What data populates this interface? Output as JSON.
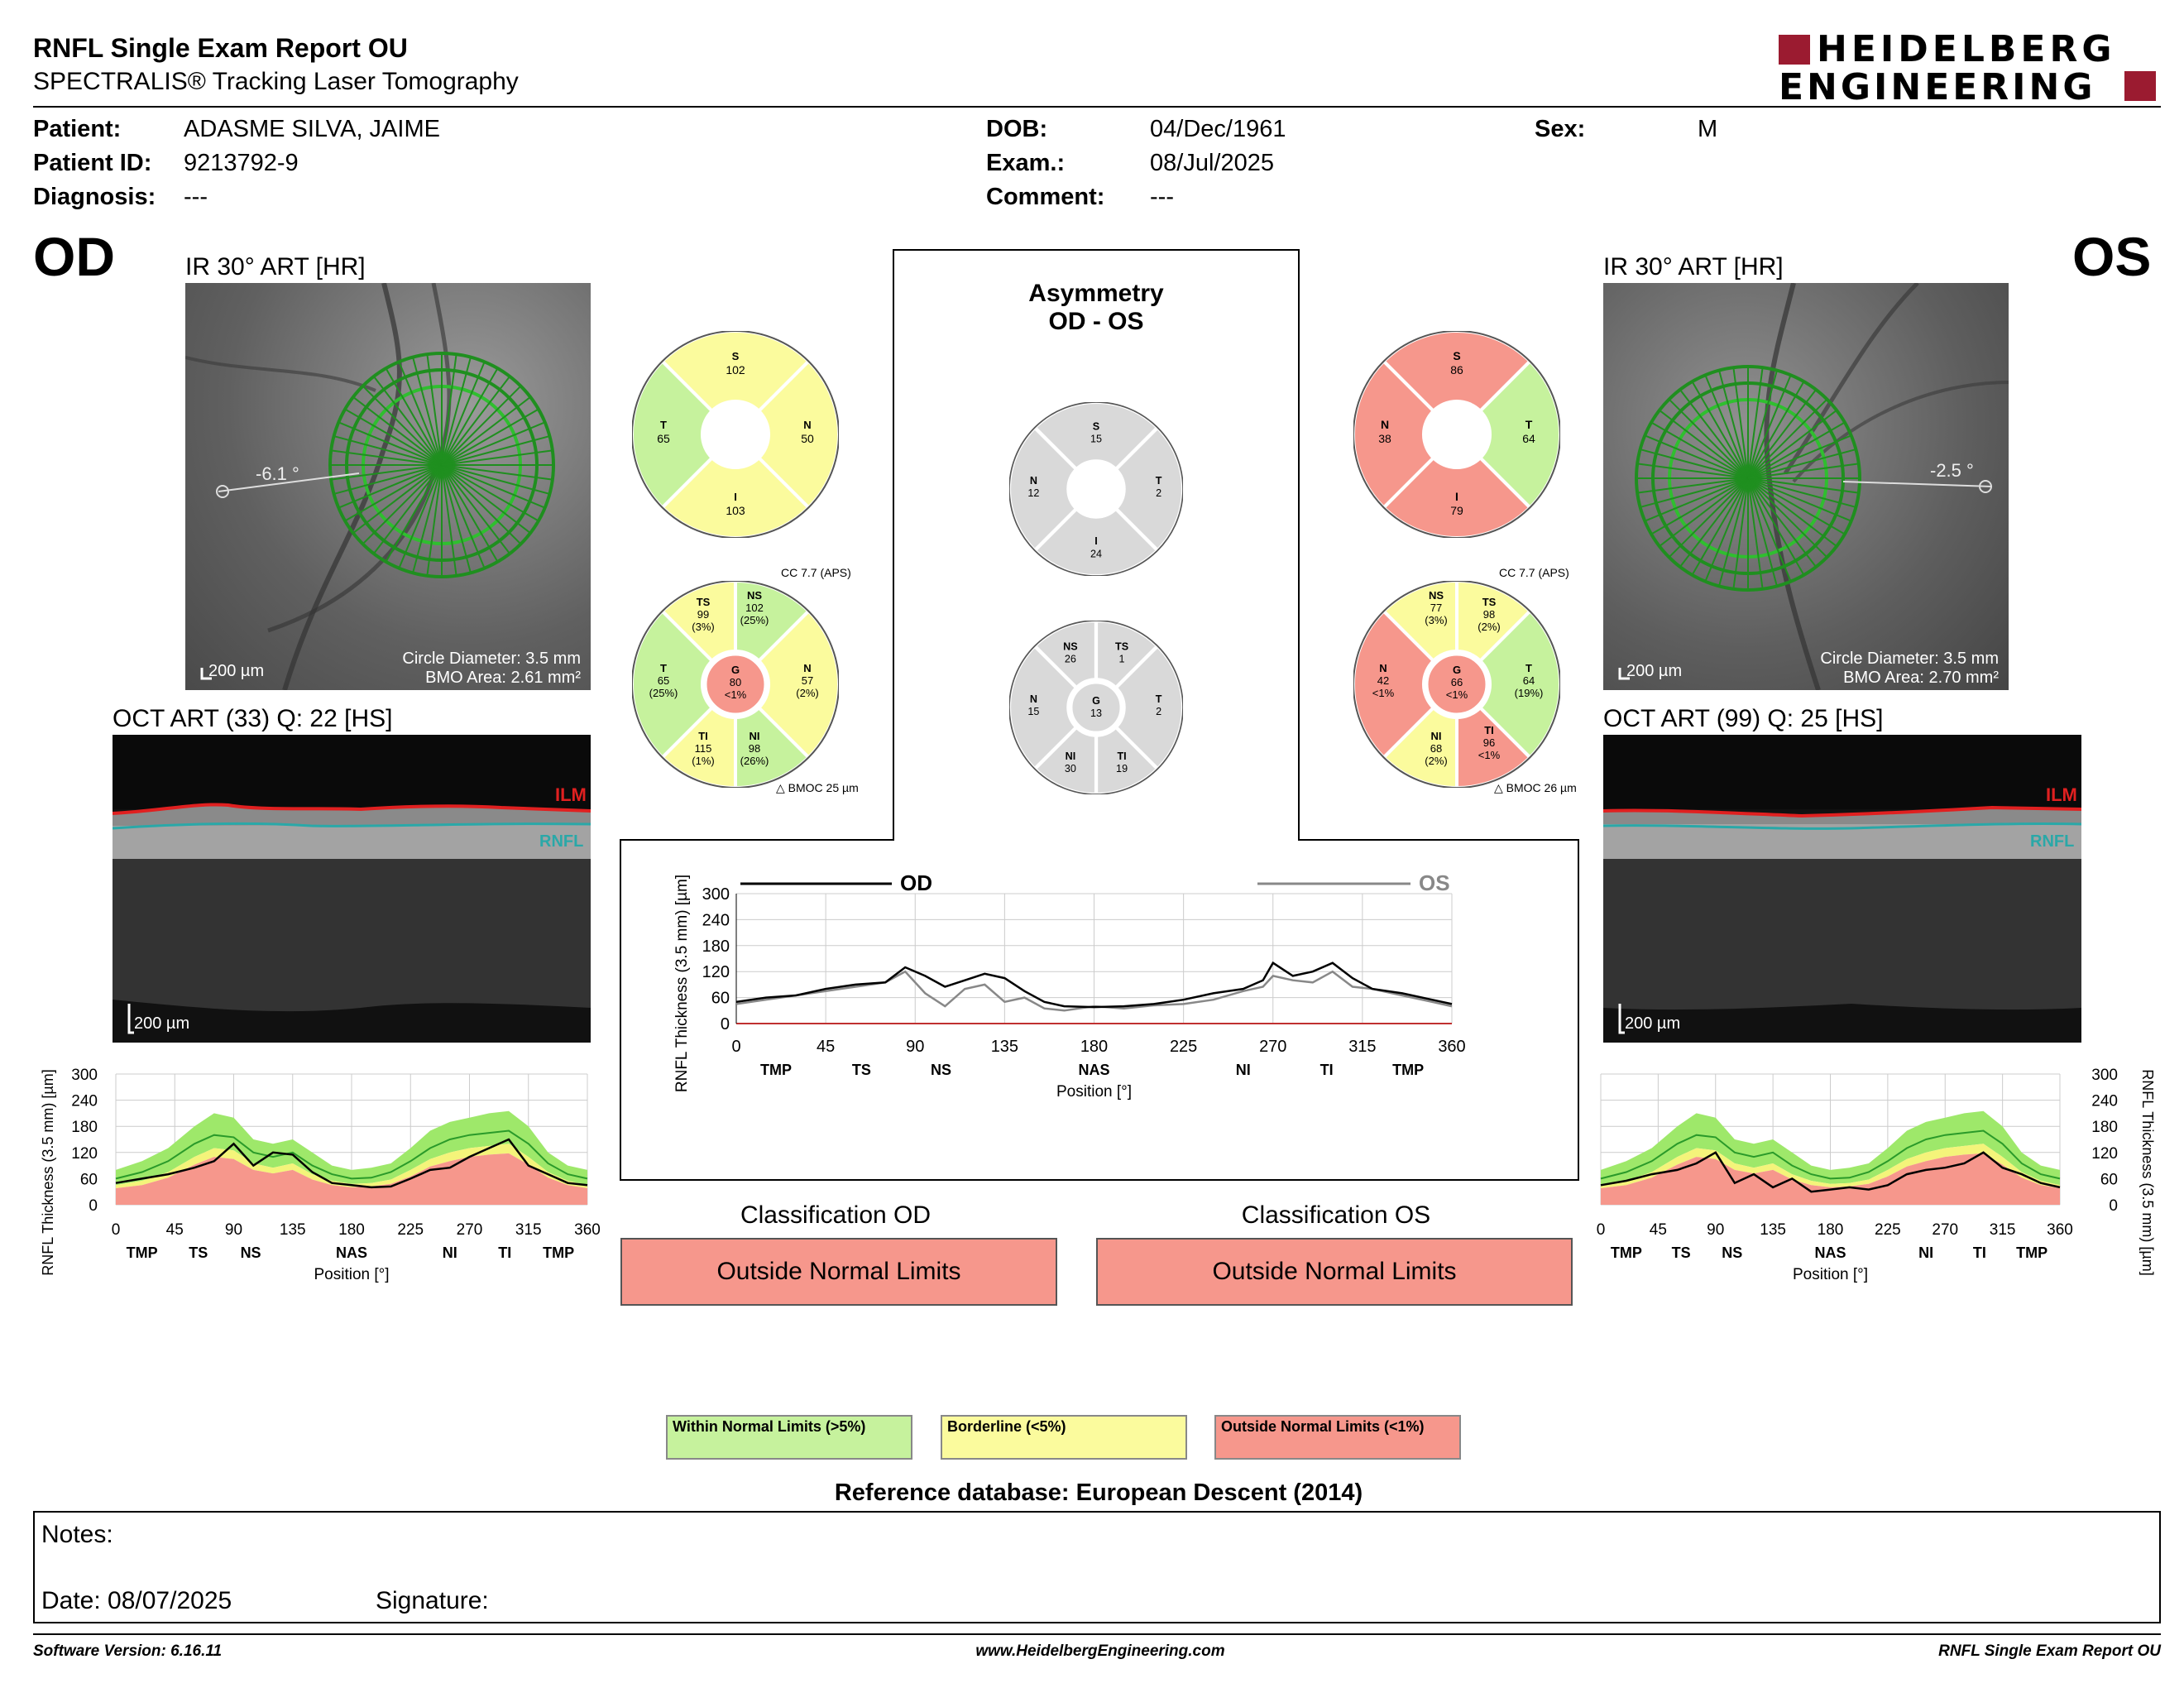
{
  "header": {
    "title": "RNFL Single Exam Report OU",
    "subtitle": "SPECTRALIS® Tracking Laser Tomography",
    "logo_line1": "HEIDELBERG",
    "logo_line2": "ENGINEERING",
    "logo_color": "#9b1b30"
  },
  "patient": {
    "patient_label": "Patient:",
    "patient_value": "ADASME SILVA, JAIME",
    "id_label": "Patient ID:",
    "id_value": "9213792-9",
    "diagnosis_label": "Diagnosis:",
    "diagnosis_value": "---",
    "dob_label": "DOB:",
    "dob_value": "04/Dec/1961",
    "exam_label": "Exam.:",
    "exam_value": "08/Jul/2025",
    "comment_label": "Comment:",
    "comment_value": "---",
    "sex_label": "Sex:",
    "sex_value": "M"
  },
  "od": {
    "eye": "OD",
    "ir_title": "IR 30° ART [HR]",
    "angle": "-6.1 °",
    "scale": "200 µm",
    "circle_diameter": "Circle Diameter: 3.5 mm",
    "bmo_area": "BMO Area: 2.61 mm²",
    "oct_title": "OCT ART (33) Q: 22 [HS]",
    "oct_scale": "200 µm",
    "ilm": "ILM",
    "rnfl": "RNFL",
    "cc": "CC 7.7 (APS)",
    "bmoc": "BMOC 25 µm",
    "quad": {
      "S": "102",
      "T": "65",
      "N": "50",
      "I": "103"
    },
    "sectors": {
      "TS": {
        "label": "TS",
        "value": "99",
        "pct": "(3%)"
      },
      "NS": {
        "label": "NS",
        "value": "102",
        "pct": "(25%)"
      },
      "T": {
        "label": "T",
        "value": "65",
        "pct": "(25%)"
      },
      "N": {
        "label": "N",
        "value": "57",
        "pct": "(2%)"
      },
      "TI": {
        "label": "TI",
        "value": "115",
        "pct": "(1%)"
      },
      "NI": {
        "label": "NI",
        "value": "98",
        "pct": "(26%)"
      },
      "G": {
        "label": "G",
        "value": "80",
        "pct": "<1%"
      }
    }
  },
  "os": {
    "eye": "OS",
    "ir_title": "IR 30° ART [HR]",
    "angle": "-2.5 °",
    "scale": "200 µm",
    "circle_diameter": "Circle Diameter: 3.5 mm",
    "bmo_area": "BMO Area: 2.70 mm²",
    "oct_title": "OCT ART (99) Q: 25 [HS]",
    "oct_scale": "200 µm",
    "ilm": "ILM",
    "rnfl": "RNFL",
    "cc": "CC 7.7 (APS)",
    "bmoc": "BMOC 26 µm",
    "quad": {
      "S": "86",
      "N": "38",
      "T": "64",
      "I": "79"
    },
    "sectors": {
      "NS": {
        "label": "NS",
        "value": "77",
        "pct": "(3%)"
      },
      "TS": {
        "label": "TS",
        "value": "98",
        "pct": "(2%)"
      },
      "N": {
        "label": "N",
        "value": "42",
        "pct": "<1%"
      },
      "T": {
        "label": "T",
        "value": "64",
        "pct": "(19%)"
      },
      "NI": {
        "label": "NI",
        "value": "68",
        "pct": "(2%)"
      },
      "TI": {
        "label": "TI",
        "value": "96",
        "pct": "<1%"
      },
      "G": {
        "label": "G",
        "value": "66",
        "pct": "<1%"
      }
    }
  },
  "asymmetry": {
    "title1": "Asymmetry",
    "title2": "OD - OS",
    "quad": {
      "S": "15",
      "N": "12",
      "T": "2",
      "I": "24"
    },
    "sectors": {
      "NS": {
        "label": "NS",
        "value": "26"
      },
      "TS": {
        "label": "TS",
        "value": "1"
      },
      "N": {
        "label": "N",
        "value": "15"
      },
      "G": {
        "label": "G",
        "value": "13"
      },
      "T": {
        "label": "T",
        "value": "2"
      },
      "NI": {
        "label": "NI",
        "value": "30"
      },
      "TI": {
        "label": "TI",
        "value": "19"
      }
    }
  },
  "colors": {
    "green": "#c6f29d",
    "yellow": "#fbfb9d",
    "red": "#f6978c",
    "grey": "#d9d9d9",
    "od_trace": "#000000",
    "os_trace": "#888888",
    "normal_band": "#9ee86a",
    "border_band": "#f4f47a",
    "outside_band": "#f6978c"
  },
  "classification": {
    "od_title": "Classification OD",
    "od_value": "Outside Normal Limits",
    "os_title": "Classification OS",
    "os_value": "Outside Normal Limits"
  },
  "legend": {
    "within": "Within Normal Limits (>5%)",
    "borderline": "Borderline (<5%)",
    "outside": "Outside Normal Limits (<1%)"
  },
  "reference": "Reference database: European Descent (2014)",
  "notes": {
    "label": "Notes:",
    "date": "Date: 08/07/2025",
    "signature": "Signature:"
  },
  "footer": {
    "version": "Software Version: 6.16.11",
    "url": "www.HeidelbergEngineering.com",
    "report": "RNFL Single Exam Report OU"
  },
  "chart_data": [
    {
      "type": "line",
      "title": "",
      "legend": [
        "OD",
        "OS"
      ],
      "xlabel": "Position [°]",
      "ylabel": "RNFL Thickness (3.5 mm) [µm]",
      "xlim": [
        0,
        360
      ],
      "ylim": [
        0,
        300
      ],
      "xticks": [
        0,
        45,
        90,
        135,
        180,
        225,
        270,
        315,
        360
      ],
      "yticks": [
        0,
        60,
        120,
        180,
        240,
        300
      ],
      "sector_labels": [
        {
          "x": 20,
          "label": "TMP"
        },
        {
          "x": 63,
          "label": "TS"
        },
        {
          "x": 103,
          "label": "NS"
        },
        {
          "x": 180,
          "label": "NAS"
        },
        {
          "x": 255,
          "label": "NI"
        },
        {
          "x": 297,
          "label": "TI"
        },
        {
          "x": 338,
          "label": "TMP"
        }
      ],
      "series": [
        {
          "name": "OD",
          "x": [
            0,
            15,
            30,
            45,
            60,
            75,
            85,
            95,
            105,
            115,
            125,
            135,
            145,
            155,
            165,
            180,
            195,
            210,
            225,
            240,
            255,
            265,
            270,
            280,
            290,
            300,
            310,
            320,
            335,
            350,
            360
          ],
          "y": [
            50,
            60,
            65,
            80,
            90,
            95,
            130,
            110,
            85,
            100,
            115,
            105,
            75,
            50,
            40,
            38,
            40,
            45,
            55,
            70,
            80,
            100,
            140,
            110,
            120,
            140,
            105,
            80,
            70,
            55,
            45
          ]
        },
        {
          "name": "OS",
          "x": [
            0,
            15,
            30,
            45,
            60,
            75,
            85,
            95,
            105,
            115,
            125,
            135,
            145,
            155,
            165,
            180,
            195,
            210,
            225,
            240,
            255,
            265,
            270,
            280,
            290,
            300,
            310,
            320,
            335,
            350,
            360
          ],
          "y": [
            45,
            55,
            65,
            75,
            85,
            95,
            120,
            70,
            40,
            80,
            90,
            50,
            60,
            35,
            30,
            40,
            35,
            42,
            45,
            55,
            75,
            85,
            110,
            100,
            95,
            120,
            85,
            80,
            65,
            50,
            40
          ]
        }
      ]
    },
    {
      "type": "area",
      "title": "",
      "eye": "OD",
      "xlabel": "Position [°]",
      "ylabel": "RNFL Thickness (3.5 mm) [µm]",
      "xlim": [
        0,
        360
      ],
      "ylim": [
        0,
        300
      ],
      "xticks": [
        0,
        45,
        90,
        135,
        180,
        225,
        270,
        315,
        360
      ],
      "yticks": [
        0,
        60,
        120,
        180,
        240,
        300
      ],
      "sector_labels": [
        {
          "x": 20,
          "label": "TMP"
        },
        {
          "x": 63,
          "label": "TS"
        },
        {
          "x": 103,
          "label": "NS"
        },
        {
          "x": 180,
          "label": "NAS"
        },
        {
          "x": 255,
          "label": "NI"
        },
        {
          "x": 297,
          "label": "TI"
        },
        {
          "x": 338,
          "label": "TMP"
        }
      ],
      "x": [
        0,
        20,
        40,
        60,
        75,
        90,
        105,
        120,
        135,
        150,
        165,
        180,
        195,
        210,
        225,
        240,
        255,
        270,
        285,
        300,
        315,
        330,
        345,
        360
      ],
      "upper_normal": [
        80,
        100,
        130,
        180,
        210,
        200,
        150,
        140,
        150,
        120,
        90,
        80,
        85,
        95,
        130,
        170,
        190,
        200,
        210,
        215,
        180,
        120,
        90,
        80
      ],
      "mean_normal": [
        60,
        75,
        100,
        140,
        160,
        155,
        120,
        110,
        120,
        90,
        70,
        60,
        62,
        75,
        100,
        130,
        150,
        160,
        165,
        170,
        140,
        95,
        70,
        60
      ],
      "lower_5": [
        45,
        55,
        75,
        110,
        130,
        125,
        95,
        85,
        95,
        70,
        55,
        48,
        50,
        58,
        80,
        105,
        120,
        130,
        135,
        140,
        110,
        75,
        55,
        45
      ],
      "lower_1": [
        38,
        45,
        62,
        92,
        110,
        105,
        80,
        72,
        80,
        58,
        45,
        40,
        42,
        48,
        65,
        88,
        100,
        110,
        115,
        118,
        92,
        62,
        45,
        38
      ],
      "measured": [
        50,
        60,
        70,
        85,
        100,
        140,
        90,
        120,
        115,
        75,
        50,
        45,
        40,
        42,
        60,
        80,
        85,
        110,
        130,
        150,
        90,
        70,
        50,
        45
      ]
    },
    {
      "type": "area",
      "title": "",
      "eye": "OS",
      "xlabel": "Position [°]",
      "ylabel": "RNFL Thickness (3.5 mm) [µm]",
      "xlim": [
        0,
        360
      ],
      "ylim": [
        0,
        300
      ],
      "xticks": [
        0,
        45,
        90,
        135,
        180,
        225,
        270,
        315,
        360
      ],
      "yticks": [
        0,
        60,
        120,
        180,
        240,
        300
      ],
      "sector_labels": [
        {
          "x": 20,
          "label": "TMP"
        },
        {
          "x": 63,
          "label": "TS"
        },
        {
          "x": 103,
          "label": "NS"
        },
        {
          "x": 180,
          "label": "NAS"
        },
        {
          "x": 255,
          "label": "NI"
        },
        {
          "x": 297,
          "label": "TI"
        },
        {
          "x": 338,
          "label": "TMP"
        }
      ],
      "x": [
        0,
        20,
        40,
        60,
        75,
        90,
        105,
        120,
        135,
        150,
        165,
        180,
        195,
        210,
        225,
        240,
        255,
        270,
        285,
        300,
        315,
        330,
        345,
        360
      ],
      "upper_normal": [
        80,
        100,
        130,
        180,
        210,
        200,
        150,
        140,
        150,
        120,
        90,
        80,
        85,
        95,
        130,
        170,
        190,
        200,
        210,
        215,
        180,
        120,
        90,
        80
      ],
      "mean_normal": [
        60,
        75,
        100,
        140,
        160,
        155,
        120,
        110,
        120,
        90,
        70,
        60,
        62,
        75,
        100,
        130,
        150,
        160,
        165,
        170,
        140,
        95,
        70,
        60
      ],
      "lower_5": [
        45,
        55,
        75,
        110,
        130,
        125,
        95,
        85,
        95,
        70,
        55,
        48,
        50,
        58,
        80,
        105,
        120,
        130,
        135,
        140,
        110,
        75,
        55,
        45
      ],
      "lower_1": [
        38,
        45,
        62,
        92,
        110,
        105,
        80,
        72,
        80,
        58,
        45,
        40,
        42,
        48,
        65,
        88,
        100,
        110,
        115,
        118,
        92,
        62,
        45,
        38
      ],
      "measured": [
        45,
        55,
        70,
        80,
        95,
        120,
        50,
        70,
        40,
        60,
        30,
        35,
        40,
        35,
        45,
        70,
        80,
        85,
        95,
        120,
        85,
        70,
        50,
        40
      ]
    }
  ]
}
